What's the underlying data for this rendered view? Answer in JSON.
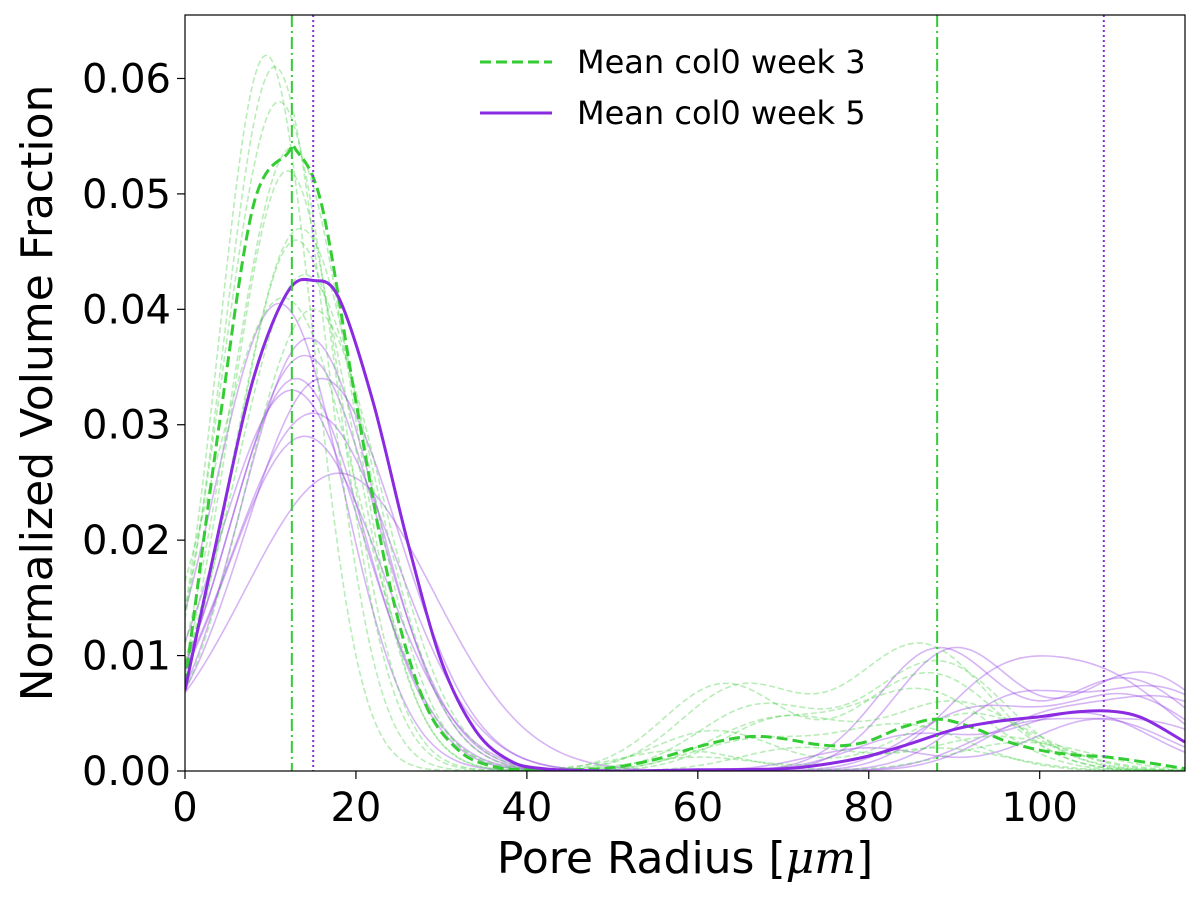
{
  "chart_data": {
    "type": "line",
    "title": "",
    "xlabel": "Pore Radius [",
    "xlabel_unit": "μm",
    "xlabel_close": "]",
    "ylabel": "Normalized Volume Fraction",
    "xlim": [
      0,
      117
    ],
    "ylim": [
      0,
      0.0655
    ],
    "xticks": [
      0,
      20,
      40,
      60,
      80,
      100
    ],
    "xtick_labels": [
      "0",
      "20",
      "40",
      "60",
      "80",
      "100"
    ],
    "yticks": [
      0,
      0.01,
      0.02,
      0.03,
      0.04,
      0.05,
      0.06
    ],
    "ytick_labels": [
      "0.00",
      "0.01",
      "0.02",
      "0.03",
      "0.04",
      "0.05",
      "0.06"
    ],
    "grid": false,
    "legend_position": "top-center",
    "colors": {
      "week3": "#33cc33",
      "week5": "#8a2be2"
    },
    "series": [
      {
        "name": "Mean col0 week 3",
        "color": "#33cc33",
        "style": "dashed",
        "x": [
          0,
          4,
          8,
          12,
          13,
          16,
          20,
          24,
          28,
          32,
          36,
          40,
          45,
          50,
          55,
          60,
          64,
          67,
          70,
          74,
          77,
          80,
          84,
          88,
          92,
          96,
          100,
          104,
          108,
          112,
          117
        ],
        "y": [
          0.0075,
          0.03,
          0.049,
          0.0535,
          0.0538,
          0.049,
          0.032,
          0.016,
          0.006,
          0.0018,
          0.0004,
          0.0001,
          0.0001,
          0.0003,
          0.001,
          0.0021,
          0.0028,
          0.003,
          0.0028,
          0.0023,
          0.0022,
          0.0026,
          0.0038,
          0.0045,
          0.0038,
          0.0026,
          0.0018,
          0.0014,
          0.0012,
          0.0008,
          0.0002
        ]
      },
      {
        "name": "Mean col0 week 5",
        "color": "#8a2be2",
        "style": "solid",
        "x": [
          0,
          4,
          8,
          12,
          15,
          18,
          22,
          26,
          30,
          34,
          38,
          42,
          50,
          60,
          70,
          75,
          80,
          85,
          90,
          95,
          100,
          104,
          108,
          112,
          117
        ],
        "y": [
          0.007,
          0.021,
          0.034,
          0.0415,
          0.0425,
          0.041,
          0.032,
          0.02,
          0.0095,
          0.0035,
          0.0009,
          0.0002,
          0.0,
          0.0001,
          0.0002,
          0.0006,
          0.0013,
          0.0024,
          0.0036,
          0.0043,
          0.0047,
          0.0051,
          0.0052,
          0.0046,
          0.0025
        ]
      }
    ],
    "individual_week3": [
      {
        "peak_x": 9.5,
        "peak_y": 0.062,
        "w": 5.5,
        "b1x": 65,
        "b1y": 0.0072,
        "b2x": 86,
        "b2y": 0.011
      },
      {
        "peak_x": 10.5,
        "peak_y": 0.061,
        "w": 6.0,
        "b1x": 67,
        "b1y": 0.0055,
        "b2x": 88,
        "b2y": 0.0095
      },
      {
        "peak_x": 11,
        "peak_y": 0.058,
        "w": 6.5,
        "b1x": 63,
        "b1y": 0.0075,
        "b2x": 87,
        "b2y": 0.0085
      },
      {
        "peak_x": 12.5,
        "peak_y": 0.054,
        "w": 7.0,
        "b1x": 70,
        "b1y": 0.0045,
        "b2x": 90,
        "b2y": 0.006
      },
      {
        "peak_x": 12,
        "peak_y": 0.052,
        "w": 6.5,
        "b1x": 68,
        "b1y": 0.004,
        "b2x": 86,
        "b2y": 0.007
      },
      {
        "peak_x": 13.5,
        "peak_y": 0.047,
        "w": 7.5,
        "b1x": 62,
        "b1y": 0.0035,
        "b2x": 92,
        "b2y": 0.005
      },
      {
        "peak_x": 13,
        "peak_y": 0.046,
        "w": 7.0,
        "b1x": 66,
        "b1y": 0.0025,
        "b2x": 84,
        "b2y": 0.004
      },
      {
        "peak_x": 14,
        "peak_y": 0.043,
        "w": 8.0,
        "b1x": 72,
        "b1y": 0.002,
        "b2x": 95,
        "b2y": 0.003
      },
      {
        "peak_x": 11.5,
        "peak_y": 0.041,
        "w": 8.5,
        "b1x": 58,
        "b1y": 0.0018,
        "b2x": 98,
        "b2y": 0.0025
      },
      {
        "peak_x": 15,
        "peak_y": 0.04,
        "w": 8.0,
        "b1x": 60,
        "b1y": 0.0012,
        "b2x": 88,
        "b2y": 0.002
      }
    ],
    "individual_week5": [
      {
        "peak_x": 11,
        "peak_y": 0.0405,
        "w": 7.5,
        "b1x": 88,
        "b1y": 0.0105,
        "b2x": 110,
        "b2y": 0.008
      },
      {
        "peak_x": 14.5,
        "peak_y": 0.0375,
        "w": 8.0,
        "b1x": 90,
        "b1y": 0.0105,
        "b2x": 112,
        "b2y": 0.0085
      },
      {
        "peak_x": 14,
        "peak_y": 0.036,
        "w": 8.5,
        "b1x": 95,
        "b1y": 0.007,
        "b2x": 108,
        "b2y": 0.0075
      },
      {
        "peak_x": 13,
        "peak_y": 0.034,
        "w": 8.0,
        "b1x": 97,
        "b1y": 0.006,
        "b2x": 114,
        "b2y": 0.007
      },
      {
        "peak_x": 16,
        "peak_y": 0.034,
        "w": 9.0,
        "b1x": 92,
        "b1y": 0.005,
        "b2x": 110,
        "b2y": 0.0065
      },
      {
        "peak_x": 12.5,
        "peak_y": 0.033,
        "w": 8.5,
        "b1x": 100,
        "b1y": 0.004,
        "b2x": 115,
        "b2y": 0.006
      },
      {
        "peak_x": 15,
        "peak_y": 0.031,
        "w": 9.5,
        "b1x": 85,
        "b1y": 0.003,
        "b2x": 105,
        "b2y": 0.005
      },
      {
        "peak_x": 14,
        "peak_y": 0.029,
        "w": 9.0,
        "b1x": 98,
        "b1y": 0.0035,
        "b2x": 113,
        "b2y": 0.004
      },
      {
        "peak_x": 18,
        "peak_y": 0.0258,
        "w": 11.0,
        "b1x": 80,
        "b1y": 0.002,
        "b2x": 107,
        "b2y": 0.0045
      }
    ],
    "vlines": [
      {
        "x": 12.5,
        "color": "#33cc33",
        "style": "dashdot"
      },
      {
        "x": 15,
        "color": "#8a2be2",
        "style": "dotted"
      },
      {
        "x": 88,
        "color": "#33cc33",
        "style": "dashdot"
      },
      {
        "x": 107.5,
        "color": "#8a2be2",
        "style": "dotted"
      }
    ]
  }
}
